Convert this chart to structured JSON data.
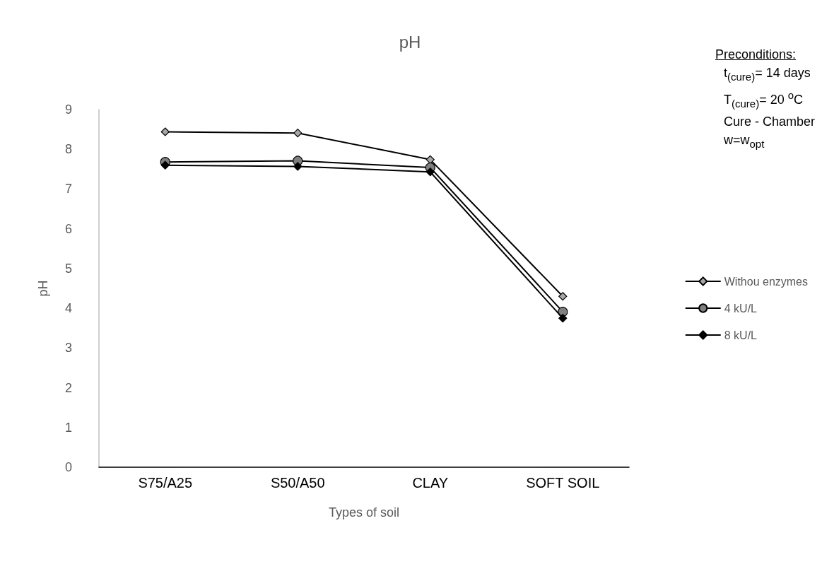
{
  "chart_data": {
    "type": "line",
    "title": "pH",
    "xlabel": "Types of soil",
    "ylabel": "pH",
    "categories": [
      "S75/A25",
      "S50/A50",
      "CLAY",
      "SOFT SOIL"
    ],
    "series": [
      {
        "name": "Withou enzymes",
        "color": "#a6a6a6",
        "marker": "diamond",
        "values": [
          8.44,
          8.41,
          7.74,
          4.3
        ]
      },
      {
        "name": "4 kU/L",
        "color": "#7f7f7f",
        "marker": "circle",
        "values": [
          7.68,
          7.71,
          7.54,
          3.91
        ]
      },
      {
        "name": "8 kU/L",
        "color": "#000000",
        "marker": "diamond",
        "values": [
          7.6,
          7.57,
          7.43,
          3.75
        ]
      }
    ],
    "ylim": [
      0,
      9
    ],
    "yticks": [
      0,
      1,
      2,
      3,
      4,
      5,
      6,
      7,
      8,
      9
    ],
    "grid": false,
    "legend": "right",
    "line_style": "solid",
    "annotations": [
      "Preconditions:",
      "t$_{(cure)}$= 14 days",
      "T$_{(cure)}$= 20 $^{o}$C",
      "Cure - Chamber",
      "w=w$_{opt}$"
    ]
  }
}
